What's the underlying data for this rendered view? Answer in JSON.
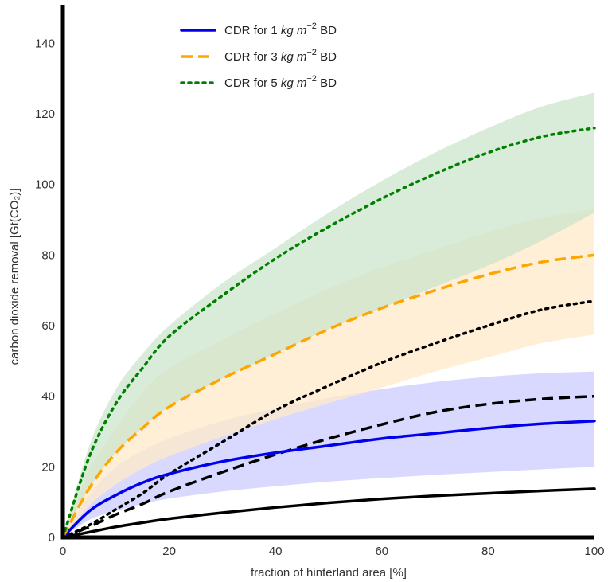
{
  "chart_data": {
    "type": "line",
    "xlabel": "fraction of hinterland area [%]",
    "ylabel": "carbon dioxide removal [Gt(CO₂)]",
    "xlim": [
      0,
      100
    ],
    "ylim": [
      0,
      150
    ],
    "xticks": [
      0,
      20,
      40,
      60,
      80,
      100
    ],
    "yticks": [
      0,
      20,
      40,
      60,
      80,
      100,
      120,
      140
    ],
    "grid": false,
    "legend_position": "top-center",
    "x": [
      0,
      5,
      10,
      15,
      20,
      30,
      40,
      50,
      60,
      70,
      80,
      90,
      100
    ],
    "series": [
      {
        "name": "CDR for 1 kg m⁻² BD",
        "name_parts": {
          "prefix": "CDR for 1 ",
          "unit": "kg m",
          "sup": "−2",
          "suffix": " BD"
        },
        "color": "#0000ee",
        "style": "solid",
        "values": [
          0,
          7.5,
          12,
          15.5,
          18,
          21.5,
          24,
          26,
          28,
          29.5,
          31,
          32.2,
          33
        ],
        "band_upper": [
          0,
          12,
          20,
          24.5,
          28,
          33,
          36.5,
          39.5,
          42,
          44,
          45.5,
          46.5,
          47
        ],
        "band_lower": [
          0,
          5,
          7.5,
          9.5,
          11,
          13,
          14.5,
          15.8,
          16.8,
          17.7,
          18.5,
          19.3,
          20
        ],
        "band_color": "#ccccff"
      },
      {
        "name": "CDR for 3 kg m⁻² BD",
        "name_parts": {
          "prefix": "CDR for 3 ",
          "unit": "kg m",
          "sup": "−2",
          "suffix": " BD"
        },
        "color": "#ffa500",
        "style": "dashed",
        "values": [
          0,
          14,
          24,
          31,
          37,
          45,
          52,
          59,
          65,
          70,
          74.5,
          78,
          80
        ],
        "band_upper": [
          0,
          19,
          31,
          41,
          48,
          56,
          63.5,
          70.5,
          76.5,
          81.5,
          86.5,
          90.5,
          93
        ],
        "band_lower": [
          0,
          9,
          15,
          19.5,
          23,
          28.5,
          33.5,
          38,
          42.5,
          47,
          51,
          55,
          57.5
        ],
        "band_color": "#fde9c8"
      },
      {
        "name": "CDR for 5 kg m⁻² BD",
        "name_parts": {
          "prefix": "CDR for 5 ",
          "unit": "kg m",
          "sup": "−2",
          "suffix": " BD"
        },
        "color": "#008000",
        "style": "dotted",
        "values": [
          0,
          23,
          38,
          48,
          57,
          68.5,
          79,
          88,
          96,
          103,
          109,
          113.5,
          116
        ],
        "band_upper": [
          0,
          26,
          42,
          52,
          60,
          72,
          82,
          92,
          101,
          109,
          116,
          122,
          126
        ],
        "band_lower": [
          0,
          14,
          24,
          31,
          37,
          45,
          52,
          59,
          65,
          71,
          77,
          84,
          92
        ],
        "band_color": "#cce4cc"
      },
      {
        "color": "#000000",
        "style": "solid",
        "values": [
          0,
          1.5,
          3,
          4.2,
          5.3,
          7,
          8.5,
          9.8,
          10.9,
          11.8,
          12.5,
          13.2,
          13.8
        ]
      },
      {
        "color": "#000000",
        "style": "dashed",
        "values": [
          0,
          3,
          6.5,
          9.5,
          13,
          18.5,
          23.5,
          28,
          32,
          35.5,
          37.8,
          39.2,
          40
        ]
      },
      {
        "color": "#000000",
        "style": "dotted",
        "values": [
          0,
          3.5,
          8,
          12.5,
          18,
          27,
          36,
          43,
          49.5,
          55,
          60,
          64.5,
          67
        ]
      }
    ]
  }
}
